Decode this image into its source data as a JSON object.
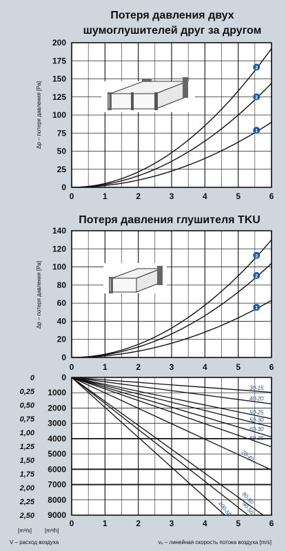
{
  "chart_data": [
    {
      "type": "line",
      "title": "Потеря давления двух шумоглушителей друг за другом",
      "title_lines": [
        "Потеря давления двух",
        "шумоглушителей друг за другом"
      ],
      "ylabel": "Δp – потеря давления [Pa]",
      "xlim": [
        0,
        6
      ],
      "ylim": [
        0,
        200
      ],
      "x_ticks": [
        "0",
        "1",
        "2",
        "3",
        "4",
        "5",
        "6"
      ],
      "y_ticks": [
        "0",
        "25",
        "50",
        "75",
        "100",
        "125",
        "150",
        "175",
        "200"
      ],
      "grid": true,
      "x": [
        0,
        1,
        2,
        3,
        4,
        5,
        6
      ],
      "series": [
        {
          "name": "1",
          "values": [
            0,
            2.5,
            10,
            22.5,
            40,
            62.5,
            90
          ]
        },
        {
          "name": "2",
          "values": [
            0,
            4,
            16,
            36,
            64,
            100,
            144
          ]
        },
        {
          "name": "3",
          "values": [
            0,
            5.3,
            21.3,
            48,
            85.3,
            133.3,
            192
          ]
        }
      ]
    },
    {
      "type": "line",
      "title": "Потеря давления глушителя TKU",
      "title_lines": [
        "Потеря давления глушителя TKU"
      ],
      "ylabel": "Δp – потеря давления [Pa]",
      "xlim": [
        0,
        6
      ],
      "ylim": [
        0,
        140
      ],
      "x_ticks": [
        "0",
        "1",
        "2",
        "3",
        "4",
        "5",
        "6"
      ],
      "y_ticks": [
        "0",
        "20",
        "40",
        "60",
        "80",
        "100",
        "120",
        "140"
      ],
      "grid": true,
      "x": [
        0,
        1,
        2,
        3,
        4,
        5,
        6
      ],
      "series": [
        {
          "name": "1",
          "values": [
            0,
            1.8,
            7,
            15.8,
            28,
            43.8,
            63
          ]
        },
        {
          "name": "2",
          "values": [
            0,
            2.9,
            11.6,
            26,
            46.2,
            72.2,
            104
          ]
        },
        {
          "name": "3",
          "values": [
            0,
            3.6,
            14.4,
            32.5,
            57.8,
            90.3,
            130
          ]
        }
      ]
    },
    {
      "type": "line",
      "xlabel": "vₒ – линейная скорость потока воздуха [m/s]",
      "ylabel_left": "V – расход воздуха",
      "unit_m3s": "[m³/s]",
      "unit_m3h": "[m³/h]",
      "xlim": [
        0,
        6
      ],
      "ylim": [
        0,
        9000
      ],
      "y_inverted": true,
      "x_ticks": [
        "0",
        "1",
        "2",
        "3",
        "4",
        "5",
        "6"
      ],
      "y_ticks_m3h": [
        "0",
        "1000",
        "2000",
        "3000",
        "4000",
        "5000",
        "6000",
        "7000",
        "8000",
        "9000"
      ],
      "y_ticks_m3s": [
        "0",
        "0,25",
        "0,50",
        "0,75",
        "1,00",
        "1,25",
        "1,50",
        "1,75",
        "2,00",
        "2,25",
        "2,50"
      ],
      "grid": true,
      "series": [
        {
          "name": "30-15",
          "x": [
            0,
            6
          ],
          "values": [
            0,
            972
          ]
        },
        {
          "name": "40-20",
          "x": [
            0,
            6
          ],
          "values": [
            0,
            1728
          ]
        },
        {
          "name": "50-25",
          "x": [
            0,
            6
          ],
          "values": [
            0,
            2700
          ]
        },
        {
          "name": "50-30",
          "x": [
            0,
            6
          ],
          "values": [
            0,
            3240
          ]
        },
        {
          "name": "60-30",
          "x": [
            0,
            6
          ],
          "values": [
            0,
            3888
          ]
        },
        {
          "name": "60-35",
          "x": [
            0,
            6
          ],
          "values": [
            0,
            4536
          ]
        },
        {
          "name": "70-40",
          "x": [
            0,
            6
          ],
          "values": [
            0,
            6048
          ]
        },
        {
          "name": "80-50",
          "x": [
            0,
            5.75
          ],
          "values": [
            0,
            9000
          ]
        },
        {
          "name": "90-50",
          "x": [
            0,
            5.3
          ],
          "values": [
            0,
            9000
          ]
        },
        {
          "name": "100-50",
          "x": [
            0,
            4.6
          ],
          "values": [
            0,
            9000
          ]
        }
      ]
    }
  ]
}
